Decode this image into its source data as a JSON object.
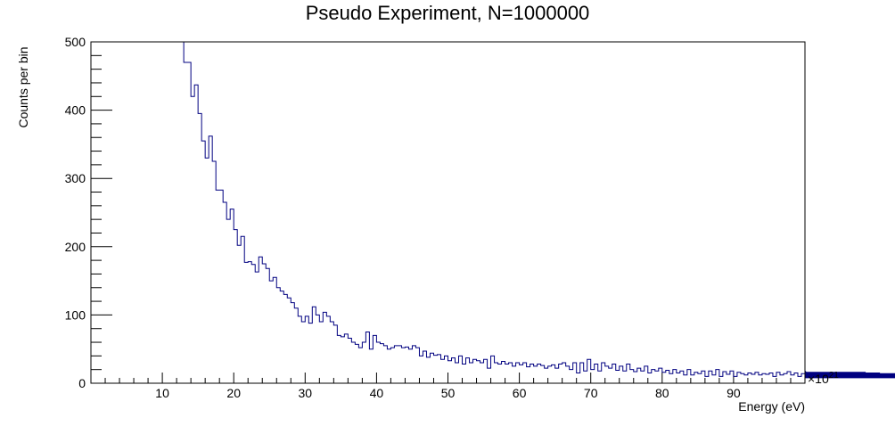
{
  "chart_data": {
    "type": "histogram",
    "title": "Pseudo Experiment, N=1000000",
    "xlabel": "Energy (eV)",
    "ylabel": "Counts per bin",
    "x_multiplier": "×10",
    "x_multiplier_exponent": "21",
    "xlim": [
      0,
      100
    ],
    "ylim": [
      0,
      500
    ],
    "x_ticks": [
      10,
      20,
      30,
      40,
      50,
      60,
      70,
      80,
      90
    ],
    "y_ticks": [
      0,
      100,
      200,
      300,
      400,
      500
    ],
    "grid": false,
    "line_color": "#000080",
    "bin_start": 12.5,
    "bin_width": 0.5,
    "values": [
      500,
      470,
      470,
      420,
      437,
      395,
      355,
      330,
      362,
      325,
      283,
      283,
      265,
      240,
      255,
      225,
      202,
      215,
      177,
      178,
      174,
      163,
      185,
      175,
      168,
      150,
      155,
      140,
      135,
      130,
      125,
      118,
      110,
      98,
      90,
      98,
      88,
      112,
      100,
      90,
      104,
      98,
      90,
      85,
      70,
      68,
      72,
      66,
      60,
      57,
      52,
      60,
      75,
      50,
      70,
      60,
      58,
      55,
      50,
      52,
      55,
      55,
      52,
      53,
      50,
      55,
      52,
      40,
      47,
      38,
      44,
      41,
      42,
      35,
      40,
      33,
      37,
      30,
      40,
      28,
      37,
      30,
      35,
      33,
      30,
      35,
      22,
      40,
      30,
      28,
      32,
      28,
      30,
      25,
      30,
      27,
      30,
      24,
      28,
      25,
      28,
      26,
      22,
      25,
      27,
      22,
      28,
      30,
      25,
      20,
      30,
      15,
      30,
      18,
      35,
      20,
      28,
      18,
      30,
      25,
      22,
      28,
      19,
      25,
      18,
      28,
      20,
      17,
      22,
      18,
      25,
      15,
      20,
      18,
      22,
      16,
      19,
      14,
      20,
      15,
      18,
      12,
      20,
      12,
      16,
      14,
      18,
      10,
      18,
      12,
      20,
      10,
      17,
      13,
      18,
      10,
      16,
      14,
      12,
      15,
      13,
      16,
      12,
      14,
      13,
      15,
      10,
      16,
      12,
      14,
      17,
      12,
      15,
      10,
      14,
      18,
      12,
      10,
      15,
      12,
      16,
      8,
      14,
      12,
      16,
      10,
      15,
      9,
      13,
      12,
      14,
      8,
      16,
      10,
      12,
      9,
      15,
      10,
      12,
      14,
      10,
      12,
      8,
      14,
      10,
      12,
      8,
      10,
      12,
      10,
      13,
      8,
      12,
      10,
      12,
      9,
      11,
      10,
      12,
      8,
      10,
      12,
      9,
      11,
      8,
      12,
      10,
      9,
      11,
      8,
      10,
      9,
      12,
      8,
      10,
      9,
      11,
      10,
      8,
      10,
      9,
      11,
      8,
      10,
      9,
      8,
      10,
      9
    ]
  }
}
